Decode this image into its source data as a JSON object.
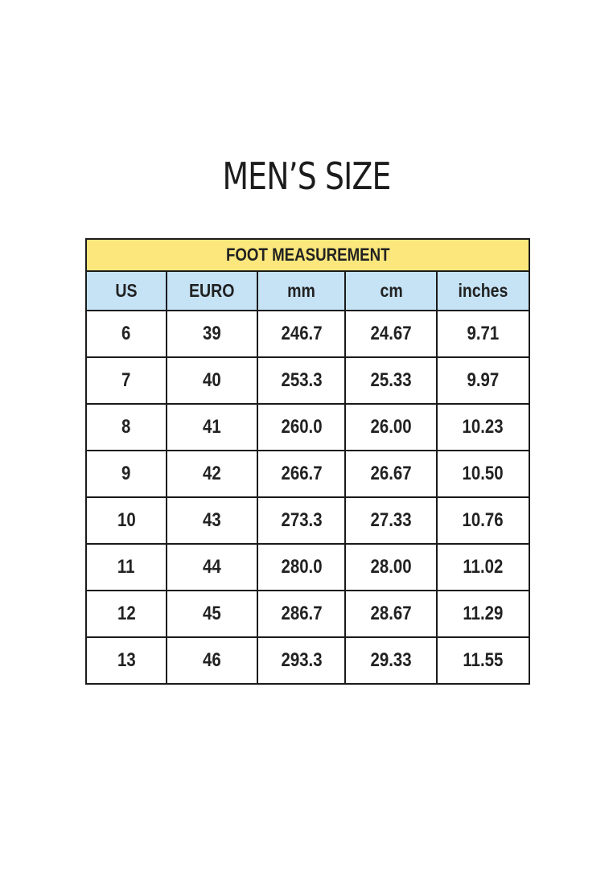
{
  "title": "MEN’S SIZE",
  "table": {
    "caption": "FOOT MEASUREMENT",
    "headers": [
      "US",
      "EURO",
      "mm",
      "cm",
      "inches"
    ],
    "rows": [
      [
        "6",
        "39",
        "246.7",
        "24.67",
        "9.71"
      ],
      [
        "7",
        "40",
        "253.3",
        "25.33",
        "9.97"
      ],
      [
        "8",
        "41",
        "260.0",
        "26.00",
        "10.23"
      ],
      [
        "9",
        "42",
        "266.7",
        "26.67",
        "10.50"
      ],
      [
        "10",
        "43",
        "273.3",
        "27.33",
        "10.76"
      ],
      [
        "11",
        "44",
        "280.0",
        "28.00",
        "11.02"
      ],
      [
        "12",
        "45",
        "286.7",
        "28.67",
        "11.29"
      ],
      [
        "13",
        "46",
        "293.3",
        "29.33",
        "11.55"
      ]
    ]
  },
  "colors": {
    "caption_bg": "#fbe77c",
    "header_bg": "#c6e3f6"
  }
}
